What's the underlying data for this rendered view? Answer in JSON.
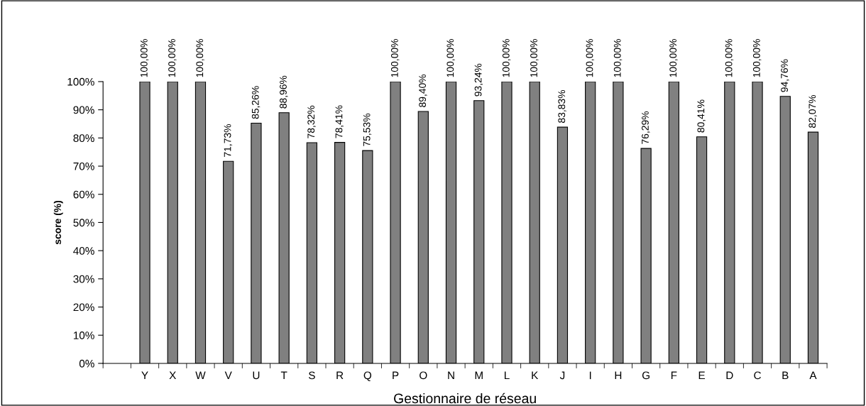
{
  "chart_data": {
    "type": "bar",
    "xlabel": "Gestionnaire de réseau",
    "ylabel": "score (%)",
    "categories": [
      null,
      "Y",
      "X",
      "W",
      "V",
      "U",
      "T",
      "S",
      "R",
      "Q",
      "P",
      "O",
      "N",
      "M",
      "L",
      "K",
      "J",
      "I",
      "H",
      "G",
      "F",
      "E",
      "D",
      "C",
      "B",
      "A"
    ],
    "values": [
      null,
      100,
      100,
      100,
      71.73,
      85.26,
      88.96,
      78.32,
      78.41,
      75.53,
      100,
      89.4,
      100,
      93.24,
      100,
      100,
      83.83,
      100,
      100,
      76.29,
      100,
      80.41,
      100,
      100,
      94.76,
      82.07
    ],
    "value_labels": [
      null,
      "100,00%",
      "100,00%",
      "100,00%",
      "71,73%",
      "85,26%",
      "88,96%",
      "78,32%",
      "78,41%",
      "75,53%",
      "100,00%",
      "89,40%",
      "100,00%",
      "93,24%",
      "100,00%",
      "100,00%",
      "83,83%",
      "100,00%",
      "100,00%",
      "76,29%",
      "100,00%",
      "80,41%",
      "100,00%",
      "100,00%",
      "94,76%",
      "82,07%"
    ],
    "color": "#808080",
    "ylim": [
      0,
      100
    ],
    "yticks": [
      {
        "value": 0,
        "label": "0%"
      },
      {
        "value": 10,
        "label": "10%"
      },
      {
        "value": 20,
        "label": "20%"
      },
      {
        "value": 30,
        "label": "30%"
      },
      {
        "value": 40,
        "label": "40%"
      },
      {
        "value": 50,
        "label": "50%"
      },
      {
        "value": 60,
        "label": "60%"
      },
      {
        "value": 70,
        "label": "70%"
      },
      {
        "value": 80,
        "label": "80%"
      },
      {
        "value": 90,
        "label": "90%"
      },
      {
        "value": 100,
        "label": "100%"
      }
    ],
    "grid": false,
    "legend": false
  }
}
